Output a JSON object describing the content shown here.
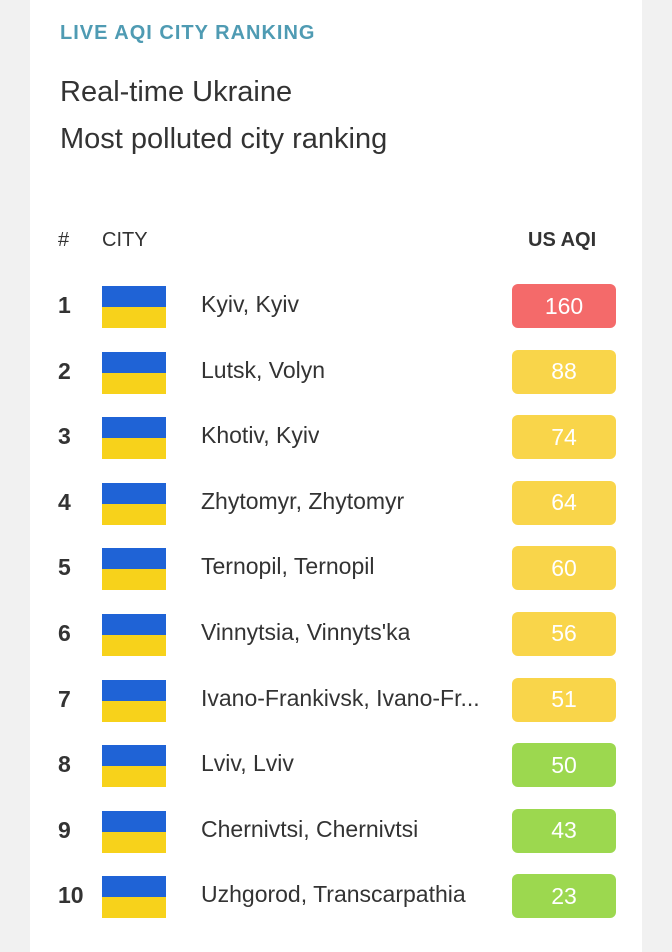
{
  "header": {
    "eyebrow": "LIVE AQI CITY RANKING",
    "title_line1": "Real-time Ukraine",
    "title_line2": "Most polluted city ranking"
  },
  "table": {
    "col_rank": "#",
    "col_city": "CITY",
    "col_aqi": "US AQI"
  },
  "colors": {
    "unhealthy": "#f46a6a",
    "moderate": "#f9d54a",
    "good": "#9cd84f"
  },
  "rows": [
    {
      "rank": "1",
      "city": "Kyiv, Kyiv",
      "aqi": "160",
      "level": "unhealthy"
    },
    {
      "rank": "2",
      "city": "Lutsk, Volyn",
      "aqi": "88",
      "level": "moderate"
    },
    {
      "rank": "3",
      "city": "Khotiv, Kyiv",
      "aqi": "74",
      "level": "moderate"
    },
    {
      "rank": "4",
      "city": "Zhytomyr, Zhytomyr",
      "aqi": "64",
      "level": "moderate"
    },
    {
      "rank": "5",
      "city": "Ternopil, Ternopil",
      "aqi": "60",
      "level": "moderate"
    },
    {
      "rank": "6",
      "city": "Vinnytsia, Vinnyts'ka",
      "aqi": "56",
      "level": "moderate"
    },
    {
      "rank": "7",
      "city": "Ivano-Frankivsk, Ivano-Fr...",
      "aqi": "51",
      "level": "moderate"
    },
    {
      "rank": "8",
      "city": "Lviv, Lviv",
      "aqi": "50",
      "level": "good"
    },
    {
      "rank": "9",
      "city": "Chernivtsi, Chernivtsi",
      "aqi": "43",
      "level": "good"
    },
    {
      "rank": "10",
      "city": "Uzhgorod, Transcarpathia",
      "aqi": "23",
      "level": "good"
    }
  ]
}
